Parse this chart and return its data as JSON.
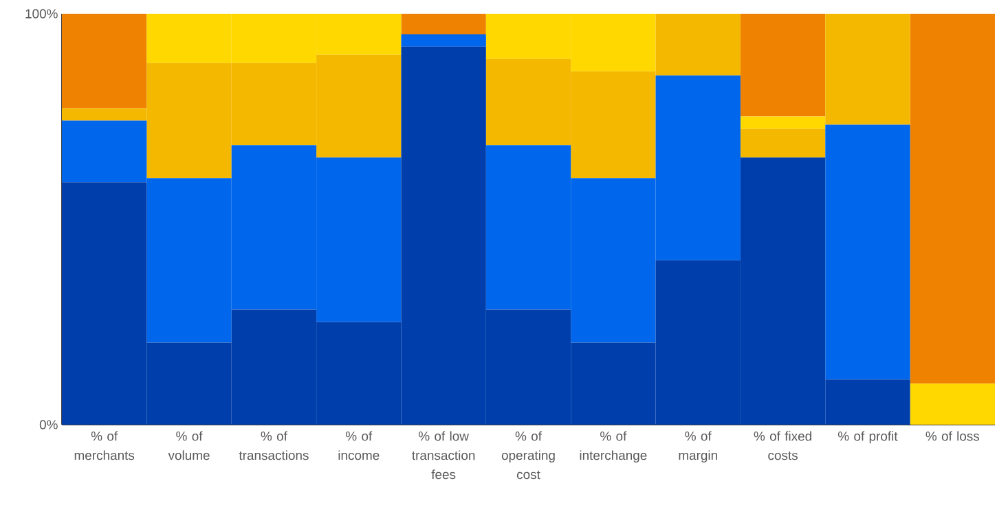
{
  "chart_data": {
    "type": "bar",
    "stacked": true,
    "categories": [
      "% of merchants",
      "% of volume",
      "% of transactions",
      "% of income",
      "% of low transaction fees",
      "% of operating cost",
      "% of interchange",
      "% of margin",
      "% of fixed costs",
      "% of profit",
      "% of loss"
    ],
    "series": [
      {
        "color": "#003fab",
        "values": [
          59,
          20,
          28,
          25,
          92,
          28,
          20,
          40,
          65,
          11,
          0
        ]
      },
      {
        "color": "#0066eb",
        "values": [
          15,
          40,
          40,
          40,
          3,
          40,
          40,
          45,
          0,
          62,
          0
        ]
      },
      {
        "color": "#f5b800",
        "values": [
          3,
          28,
          20,
          25,
          0,
          21,
          26,
          15,
          7,
          27,
          0
        ]
      },
      {
        "color": "#ffd800",
        "values": [
          0,
          12,
          12,
          10,
          0,
          11,
          14,
          0,
          3,
          0,
          10
        ]
      },
      {
        "color": "#ef8200",
        "values": [
          23,
          0,
          0,
          0,
          5,
          0,
          0,
          0,
          25,
          0,
          90
        ]
      }
    ],
    "ylim": [
      0,
      100
    ],
    "yticks": [
      {
        "value": 0,
        "label": "0%"
      },
      {
        "value": 100,
        "label": "100%"
      }
    ],
    "grid": false
  }
}
